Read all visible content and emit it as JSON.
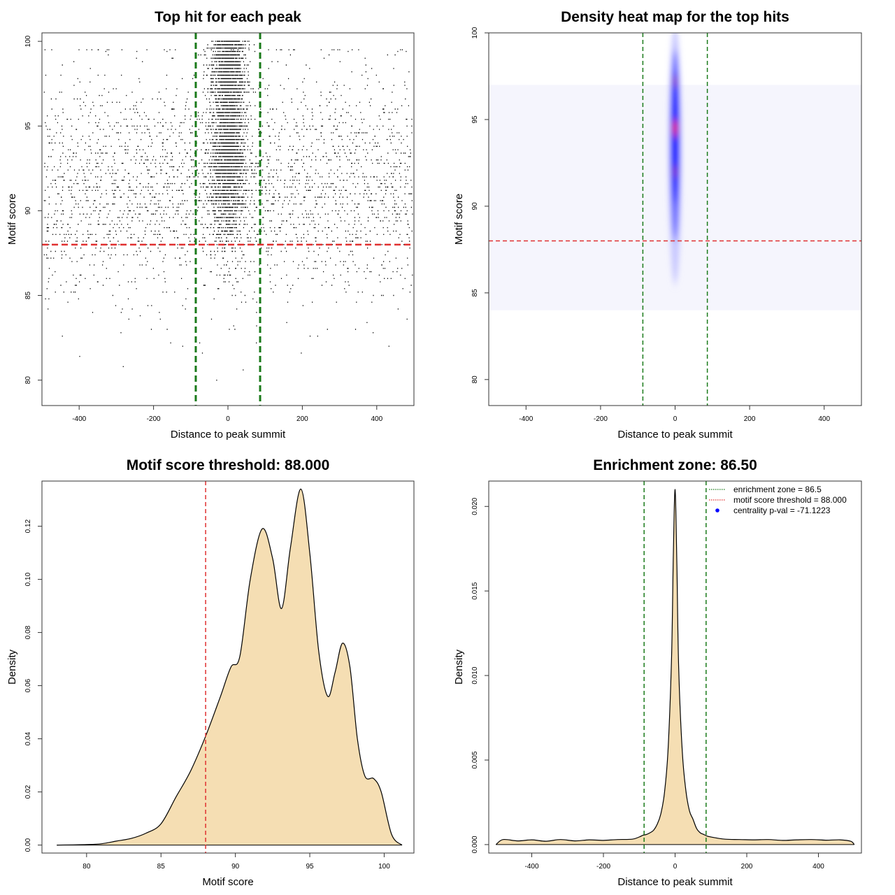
{
  "chart_data": [
    {
      "type": "scatter",
      "title": "Top hit for each peak",
      "xlabel": "Distance to peak summit",
      "ylabel": "Motif score",
      "xlim": [
        -500,
        500
      ],
      "ylim": [
        78.5,
        100.5
      ],
      "xticks": [
        -400,
        -200,
        0,
        200,
        400
      ],
      "yticks": [
        80,
        85,
        90,
        95,
        100
      ],
      "vlines": [
        -86.5,
        86.5
      ],
      "hline": 88.0,
      "vline_color": "#1a7a1a",
      "hline_color": "#e03030",
      "point_color": "#000000"
    },
    {
      "type": "heatmap",
      "title": "Density heat map for the top hits",
      "xlabel": "Distance to peak summit",
      "ylabel": "Motif score",
      "xlim": [
        -500,
        500
      ],
      "ylim": [
        78.5,
        100
      ],
      "xticks": [
        -400,
        -200,
        0,
        200,
        400
      ],
      "yticks": [
        80,
        85,
        90,
        95,
        100
      ],
      "vlines": [
        -86.5,
        86.5
      ],
      "hline": 88.0,
      "vline_color": "#1a7a1a",
      "hline_color": "#e03030",
      "colors": [
        "#ffffff",
        "#0000ff",
        "#ff0000"
      ]
    },
    {
      "type": "area",
      "title": "Motif score threshold: 88.000",
      "xlabel": "Motif score",
      "ylabel": "Density",
      "xlim": [
        77,
        102
      ],
      "ylim": [
        -0.003,
        0.137
      ],
      "xticks": [
        80,
        85,
        90,
        95,
        100
      ],
      "yticks": [
        0.0,
        0.02,
        0.04,
        0.06,
        0.08,
        0.1,
        0.12
      ],
      "ytick_labels": [
        "0.00",
        "0.02",
        "0.04",
        "0.06",
        "0.08",
        "0.10",
        "0.12"
      ],
      "vline": 88.0,
      "vline_color": "#e03030",
      "fill": "#f5deb3",
      "x": [
        78,
        80,
        81,
        82,
        83,
        84,
        85,
        86,
        87,
        88,
        89,
        89.7,
        90.3,
        91,
        91.8,
        92.5,
        93.1,
        93.7,
        94.4,
        95,
        95.6,
        96.2,
        96.7,
        97.2,
        97.7,
        98.2,
        98.7,
        99.3,
        99.8,
        100.5,
        101.2
      ],
      "y": [
        0.0,
        0.0002,
        0.0005,
        0.0015,
        0.0025,
        0.0045,
        0.008,
        0.018,
        0.028,
        0.041,
        0.056,
        0.067,
        0.071,
        0.1,
        0.119,
        0.108,
        0.089,
        0.112,
        0.134,
        0.11,
        0.073,
        0.056,
        0.065,
        0.076,
        0.067,
        0.04,
        0.026,
        0.025,
        0.02,
        0.004,
        0.0
      ]
    },
    {
      "type": "area",
      "title": "Enrichment zone: 86.50",
      "xlabel": "Distance to peak summit",
      "ylabel": "Density",
      "xlim": [
        -520,
        520
      ],
      "ylim": [
        -0.0005,
        0.0215
      ],
      "xticks": [
        -400,
        -200,
        0,
        200,
        400
      ],
      "yticks": [
        0.0,
        0.005,
        0.01,
        0.015,
        0.02
      ],
      "ytick_labels": [
        "0.000",
        "0.005",
        "0.010",
        "0.015",
        "0.020"
      ],
      "vlines": [
        -86.5,
        86.5
      ],
      "vline_color": "#1a7a1a",
      "fill": "#f5deb3",
      "x": [
        -500,
        -480,
        -440,
        -400,
        -360,
        -320,
        -280,
        -240,
        -200,
        -160,
        -120,
        -100,
        -90,
        -80,
        -70,
        -60,
        -50,
        -40,
        -30,
        -20,
        -10,
        -5,
        0,
        5,
        10,
        20,
        30,
        40,
        50,
        60,
        70,
        80,
        90,
        100,
        140,
        180,
        220,
        260,
        300,
        340,
        380,
        420,
        460,
        490,
        500
      ],
      "y": [
        0.0,
        0.0003,
        0.00022,
        0.00028,
        0.0002,
        0.0003,
        0.00022,
        0.00028,
        0.00025,
        0.0003,
        0.00032,
        0.00045,
        0.00055,
        0.0006,
        0.0007,
        0.00085,
        0.0012,
        0.0018,
        0.003,
        0.0055,
        0.011,
        0.017,
        0.021,
        0.0165,
        0.0105,
        0.0055,
        0.0032,
        0.002,
        0.0015,
        0.00095,
        0.0007,
        0.0006,
        0.0005,
        0.00045,
        0.00032,
        0.0003,
        0.00028,
        0.0003,
        0.00025,
        0.00028,
        0.0003,
        0.00026,
        0.00028,
        0.0002,
        0.0
      ],
      "legend": [
        {
          "label": "enrichment zone = 86.5",
          "color": "#1a7a1a",
          "kind": "dotted-line"
        },
        {
          "label": "motif score threshold = 88.000",
          "color": "#e03030",
          "kind": "dotted-line"
        },
        {
          "label": "centrality p-val = -71.1223",
          "color": "#0000ff",
          "kind": "point"
        }
      ]
    }
  ]
}
